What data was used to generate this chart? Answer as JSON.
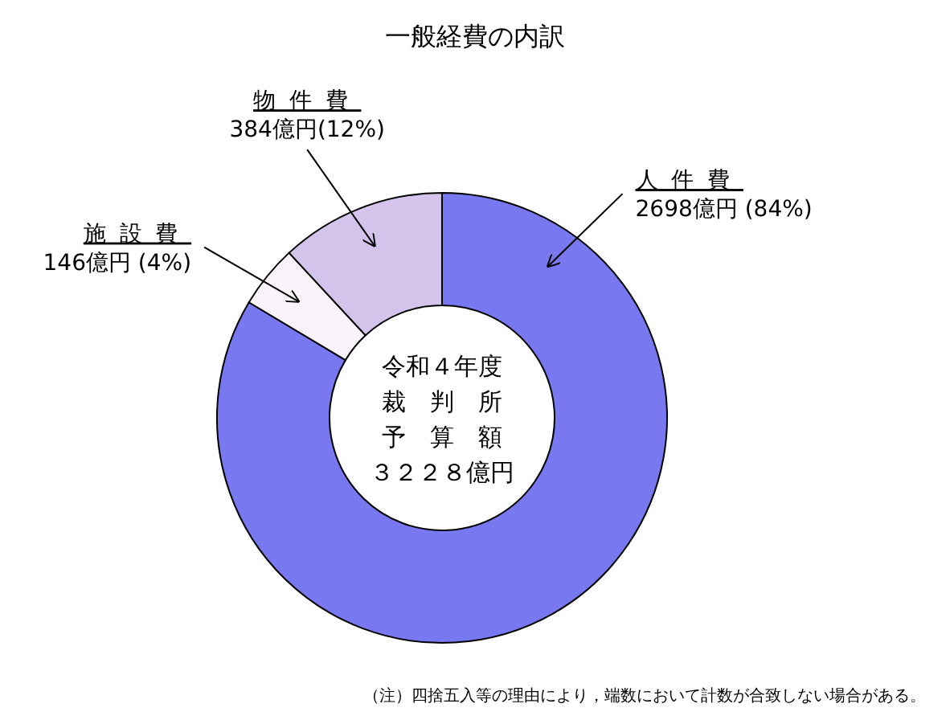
{
  "chart_data": {
    "type": "donut",
    "title": "一般経費の内訳",
    "categories": [
      "人件費",
      "施設費",
      "物件費"
    ],
    "values": [
      2698,
      146,
      384
    ],
    "value_labels": [
      "2698億円 (84%)",
      "146億円 (4%)",
      "384億円(12%)"
    ],
    "colors": [
      "#7878f0",
      "#faf4fa",
      "#d4c4ec"
    ],
    "annotations": [
      "令和４年度",
      "裁　判　所",
      "予　算　額",
      "３２２８億円",
      "（注）四捨五入等の理由により，端数において計数が合致しない場合がある。"
    ]
  }
}
